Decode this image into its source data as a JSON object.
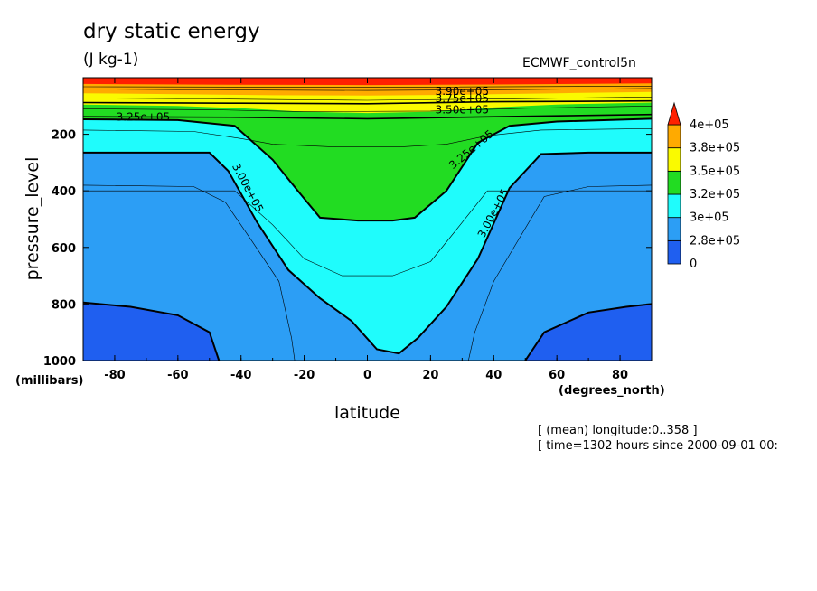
{
  "header": {
    "title": "dry static energy",
    "units": "(J kg-1)",
    "dataset": "ECMWF_control5n"
  },
  "footer": {
    "mean_note": "[ (mean) longitude:0..358 ]",
    "time_note": "[ time=1302 hours since 2000-09-01 00:"
  },
  "chart_data": {
    "type": "contour",
    "title": "dry static energy",
    "units": "(J kg-1)",
    "xlabel": "latitude",
    "xunit": "(degrees_north)",
    "ylabel": "pressure_level",
    "yunit": "(millibars)",
    "xlim": [
      -90,
      90
    ],
    "ylim": [
      1000,
      0
    ],
    "xticks": [
      -80,
      -60,
      -40,
      -20,
      0,
      20,
      40,
      60,
      80
    ],
    "xtick_labels": [
      "-80",
      "-60",
      "-40",
      "-20",
      "0",
      "20",
      "40",
      "60",
      "80"
    ],
    "yticks": [
      200,
      400,
      600,
      800,
      1000
    ],
    "ytick_labels": [
      "200",
      "400",
      "600",
      "800",
      "1000"
    ],
    "colorbar": {
      "labels": [
        "0",
        "2.8e+05",
        "3e+05",
        "3.2e+05",
        "3.5e+05",
        "3.8e+05",
        "4e+05"
      ],
      "colors": [
        "#1f5ff0",
        "#2c9ef5",
        "#1ffcfc",
        "#22dc22",
        "#fafa00",
        "#ffaa00",
        "#ff2000"
      ]
    },
    "fill_colors": {
      "deep_blue": "#1f5ff0",
      "mid_blue": "#2c9ef5",
      "cyan": "#1ffcfc",
      "green": "#22dc22",
      "yellow": "#fafa00",
      "orange": "#ffaa00",
      "red": "#ff2000"
    },
    "contour_labels": [
      {
        "text": "3.90e+05",
        "lat": 30,
        "p": 50
      },
      {
        "text": "3.75e+05",
        "lat": 30,
        "p": 75
      },
      {
        "text": "3.50e+05",
        "lat": 30,
        "p": 115
      },
      {
        "text": "3.25e+05",
        "lat": -71,
        "p": 140
      },
      {
        "text": "3.25e+05",
        "lat": 33,
        "p": 255
      },
      {
        "text": "3.00e+05",
        "lat": -38,
        "p": 390
      },
      {
        "text": "3.00e+05",
        "lat": 40,
        "p": 480
      }
    ],
    "thick_contours": [
      {
        "name": "3.00e+05",
        "points": [
          [
            -90,
            265
          ],
          [
            -50,
            265
          ],
          [
            -44,
            330
          ],
          [
            -35,
            510
          ],
          [
            -25,
            680
          ],
          [
            -15,
            780
          ],
          [
            -5,
            860
          ],
          [
            3,
            960
          ],
          [
            10,
            975
          ],
          [
            16,
            920
          ],
          [
            25,
            810
          ],
          [
            35,
            640
          ],
          [
            45,
            390
          ],
          [
            55,
            270
          ],
          [
            70,
            265
          ],
          [
            90,
            265
          ]
        ]
      },
      {
        "name": "3.25e+05",
        "points": [
          [
            -90,
            147
          ],
          [
            -60,
            150
          ],
          [
            -42,
            170
          ],
          [
            -30,
            290
          ],
          [
            -22,
            400
          ],
          [
            -15,
            495
          ],
          [
            -3,
            505
          ],
          [
            8,
            505
          ],
          [
            15,
            495
          ],
          [
            25,
            400
          ],
          [
            35,
            230
          ],
          [
            45,
            170
          ],
          [
            60,
            155
          ],
          [
            90,
            145
          ]
        ]
      },
      {
        "name": "2.75e+05",
        "points": [
          [
            -90,
            795
          ],
          [
            -75,
            810
          ],
          [
            -60,
            840
          ],
          [
            -50,
            900
          ],
          [
            -47,
            1000
          ]
        ]
      },
      {
        "name": "2.75e+05-east",
        "points": [
          [
            50,
            1000
          ],
          [
            56,
            900
          ],
          [
            70,
            830
          ],
          [
            82,
            810
          ],
          [
            90,
            800
          ]
        ]
      }
    ]
  }
}
